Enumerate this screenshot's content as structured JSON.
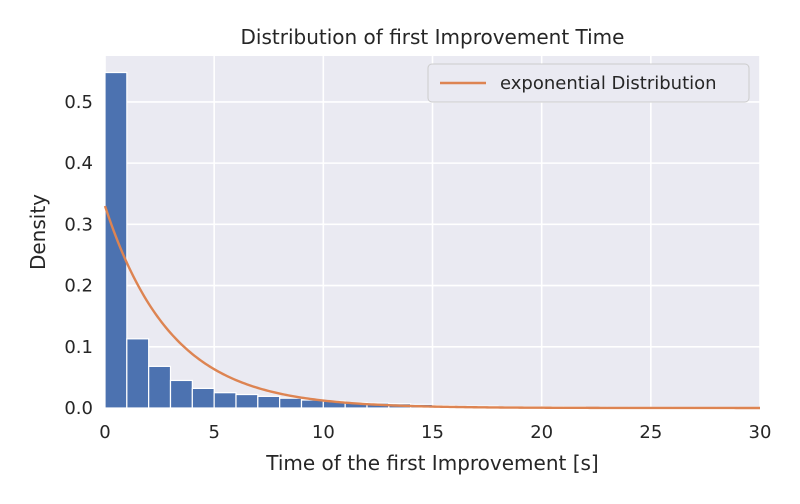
{
  "chart_data": {
    "type": "bar",
    "title": "Distribution of first Improvement Time",
    "xlabel": "Time of the first Improvement [s]",
    "ylabel": "Density",
    "xlim": [
      0,
      30
    ],
    "ylim": [
      0,
      0.575
    ],
    "xticks": [
      0,
      5,
      10,
      15,
      20,
      25,
      30
    ],
    "yticks": [
      0.0,
      0.1,
      0.2,
      0.3,
      0.4,
      0.5
    ],
    "xtick_labels": [
      "0",
      "5",
      "10",
      "15",
      "20",
      "25",
      "30"
    ],
    "ytick_labels": [
      "0.0",
      "0.1",
      "0.2",
      "0.3",
      "0.4",
      "0.5"
    ],
    "grid": true,
    "legend_position": "top-right",
    "histogram": {
      "bin_width": 1,
      "bins_start": [
        0,
        1,
        2,
        3,
        4,
        5,
        6,
        7,
        8,
        9,
        10,
        11,
        12,
        13,
        14,
        15,
        16,
        17,
        18,
        19,
        20,
        21,
        22,
        23,
        24,
        25,
        26,
        27,
        28,
        29
      ],
      "density": [
        0.548,
        0.113,
        0.068,
        0.045,
        0.032,
        0.025,
        0.022,
        0.019,
        0.016,
        0.013,
        0.011,
        0.009,
        0.008,
        0.007,
        0.006,
        0.004,
        0.003,
        0.003,
        0.002,
        0.002,
        0.002,
        0.002,
        0.001,
        0.001,
        0.001,
        0.001,
        0.001,
        0.001,
        0.001,
        0.001
      ],
      "color": "#4c72b0"
    },
    "series": [
      {
        "name": "exponential Distribution",
        "type": "line",
        "rate": 0.33,
        "color": "#dd8452"
      }
    ],
    "background_color": "#eaeaf2",
    "grid_color": "#ffffff"
  }
}
